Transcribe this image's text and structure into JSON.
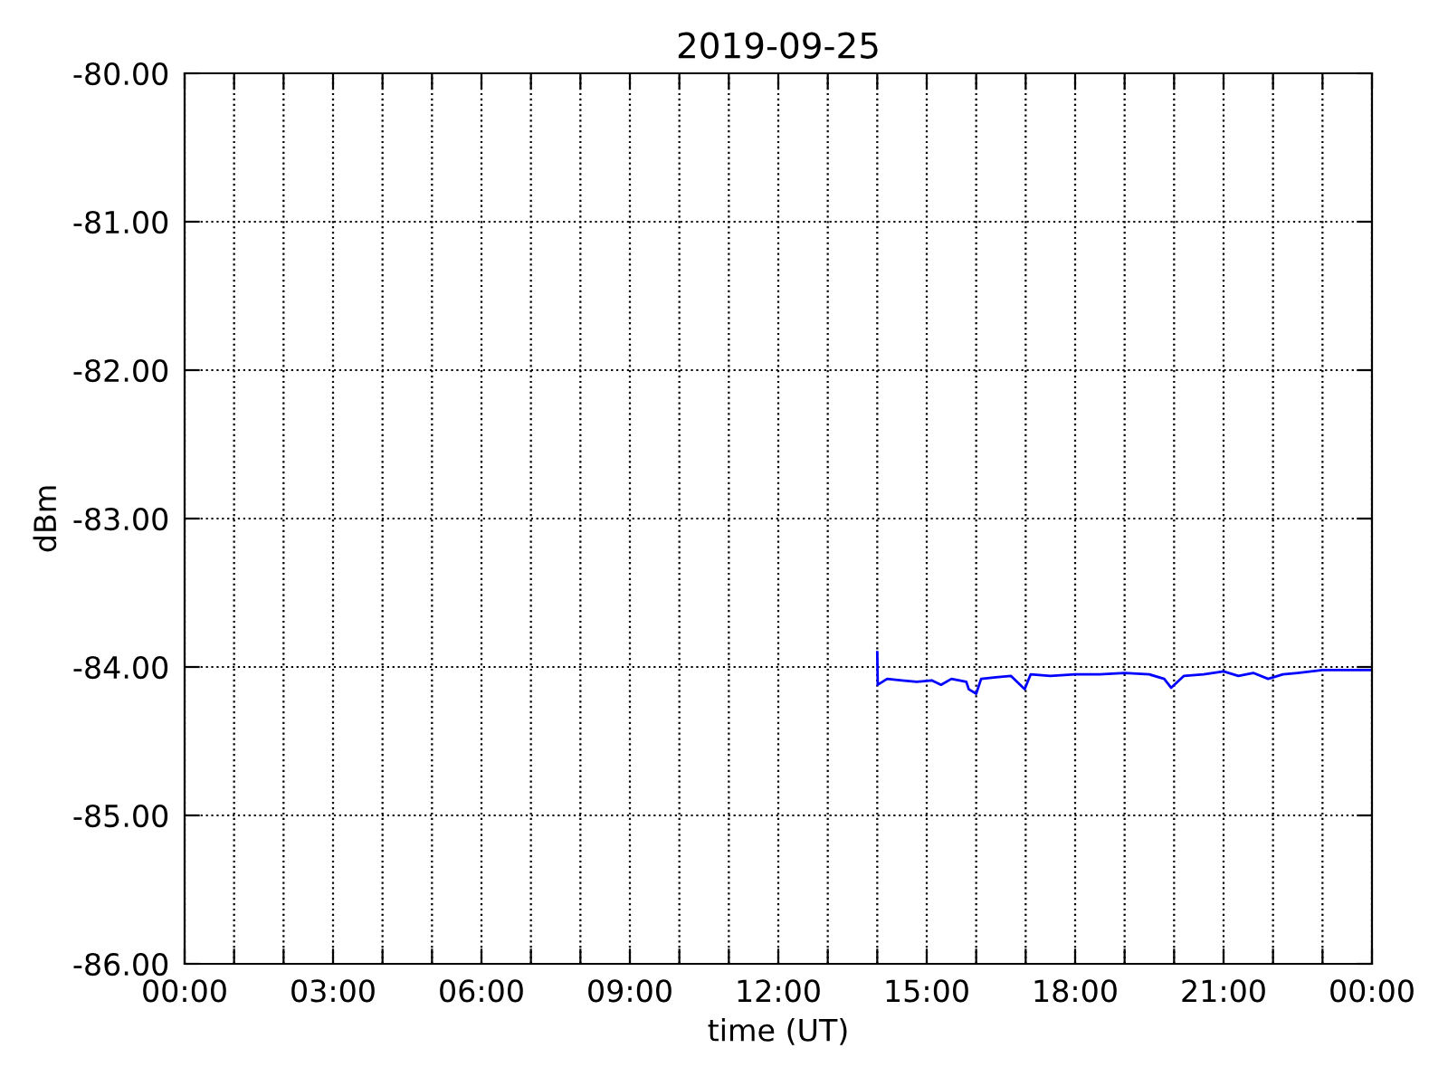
{
  "chart_data": {
    "type": "line",
    "title": "2019-09-25",
    "xlabel": "time (UT)",
    "ylabel": "dBm",
    "xlim": [
      0,
      24
    ],
    "ylim": [
      -86,
      -80
    ],
    "xticks": [
      {
        "value": 0,
        "label": "00:00"
      },
      {
        "value": 1,
        "label": null
      },
      {
        "value": 2,
        "label": null
      },
      {
        "value": 3,
        "label": "03:00"
      },
      {
        "value": 4,
        "label": null
      },
      {
        "value": 5,
        "label": null
      },
      {
        "value": 6,
        "label": "06:00"
      },
      {
        "value": 7,
        "label": null
      },
      {
        "value": 8,
        "label": null
      },
      {
        "value": 9,
        "label": "09:00"
      },
      {
        "value": 10,
        "label": null
      },
      {
        "value": 11,
        "label": null
      },
      {
        "value": 12,
        "label": "12:00"
      },
      {
        "value": 13,
        "label": null
      },
      {
        "value": 14,
        "label": null
      },
      {
        "value": 15,
        "label": "15:00"
      },
      {
        "value": 16,
        "label": null
      },
      {
        "value": 17,
        "label": null
      },
      {
        "value": 18,
        "label": "18:00"
      },
      {
        "value": 19,
        "label": null
      },
      {
        "value": 20,
        "label": null
      },
      {
        "value": 21,
        "label": "21:00"
      },
      {
        "value": 22,
        "label": null
      },
      {
        "value": 23,
        "label": null
      },
      {
        "value": 24,
        "label": "00:00"
      }
    ],
    "yticks": [
      {
        "value": -86,
        "label": "-86.00"
      },
      {
        "value": -85,
        "label": "-85.00"
      },
      {
        "value": -84,
        "label": "-84.00"
      },
      {
        "value": -83,
        "label": "-83.00"
      },
      {
        "value": -82,
        "label": "-82.00"
      },
      {
        "value": -81,
        "label": "-81.00"
      },
      {
        "value": -80,
        "label": "-80.00"
      }
    ],
    "grid": true,
    "line_style": "solid",
    "series": [
      {
        "color": "#0000ff",
        "x": [
          14.0,
          14.01,
          14.2,
          14.5,
          14.8,
          15.1,
          15.29,
          15.5,
          15.8,
          15.85,
          16.0,
          16.1,
          16.4,
          16.7,
          16.98,
          17.1,
          17.5,
          18.0,
          18.5,
          19.0,
          19.5,
          19.8,
          19.94,
          20.2,
          20.6,
          21.0,
          21.3,
          21.6,
          21.9,
          22.2,
          22.5,
          23.0,
          23.5,
          24.0
        ],
        "values": [
          -83.9,
          -84.12,
          -84.08,
          -84.09,
          -84.1,
          -84.09,
          -84.12,
          -84.08,
          -84.1,
          -84.15,
          -84.18,
          -84.08,
          -84.07,
          -84.06,
          -84.15,
          -84.05,
          -84.06,
          -84.05,
          -84.05,
          -84.04,
          -84.05,
          -84.08,
          -84.14,
          -84.06,
          -84.05,
          -84.03,
          -84.06,
          -84.04,
          -84.08,
          -84.05,
          -84.04,
          -84.02,
          -84.02,
          -84.02
        ]
      }
    ]
  }
}
